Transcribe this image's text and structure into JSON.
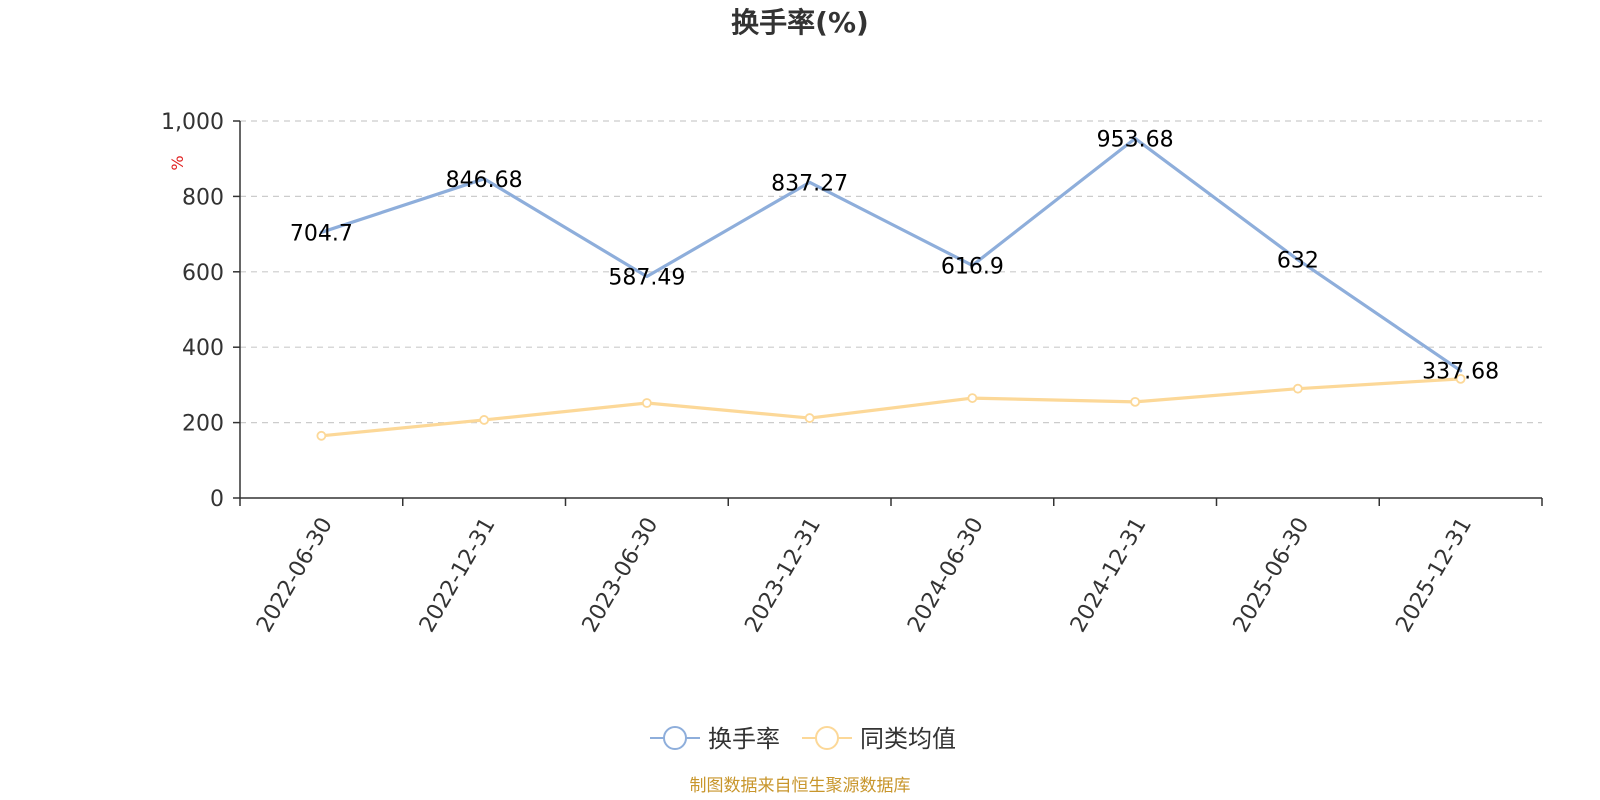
{
  "chart_data": {
    "type": "line",
    "title": "换手率(%)",
    "ylabel": "%",
    "categories": [
      "2022-06-30",
      "2022-12-31",
      "2023-06-30",
      "2023-12-31",
      "2024-06-30",
      "2024-12-31",
      "2025-06-30",
      "2025-12-31"
    ],
    "ylim": [
      0,
      1000
    ],
    "yticks": [
      0,
      200,
      400,
      600,
      800,
      1000
    ],
    "ytick_labels": [
      "0",
      "200",
      "400",
      "600",
      "800",
      "1,000"
    ],
    "grid": true,
    "legend_position": "bottom-center",
    "series": [
      {
        "name": "换手率",
        "color": "#8eaedb",
        "values": [
          704.7,
          846.68,
          587.49,
          837.27,
          616.9,
          953.68,
          632,
          337.68
        ],
        "labels": [
          "704.7",
          "846.68",
          "587.49",
          "837.27",
          "616.9",
          "953.68",
          "632",
          "337.68"
        ],
        "show_markers": false
      },
      {
        "name": "同类均值",
        "color": "#fcd898",
        "values": [
          165,
          207,
          252,
          212,
          265,
          255,
          290,
          316
        ],
        "show_markers": true
      }
    ]
  },
  "source": "制图数据来自恒生聚源数据库",
  "colors": {
    "title": "#333333",
    "axis": "#333333",
    "grid": "#cccccc",
    "unit": "#e02020",
    "source": "#c8962c"
  }
}
